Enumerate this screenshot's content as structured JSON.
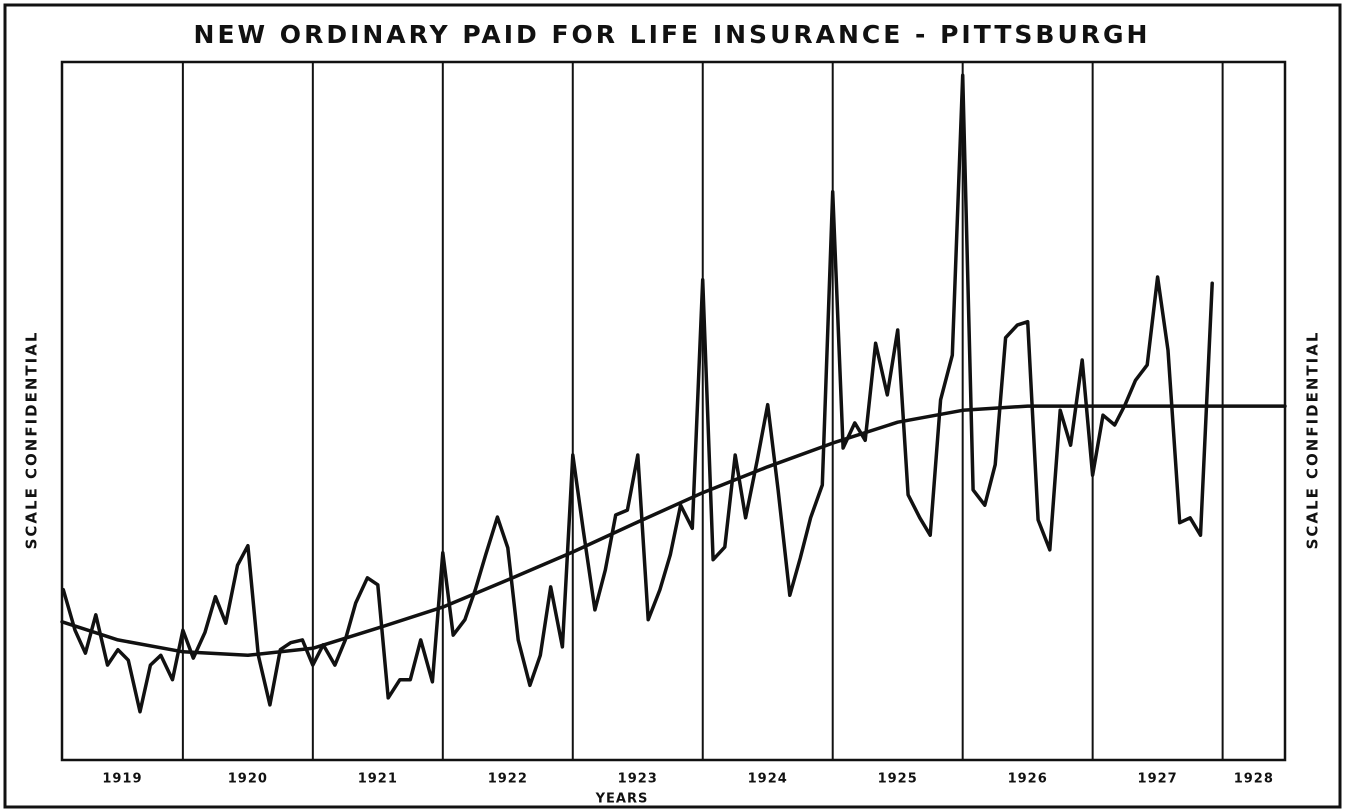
{
  "chart_data": {
    "type": "line",
    "title": "NEW ORDINARY PAID FOR LIFE INSURANCE - PITTSBURGH",
    "x_label": "YEARS",
    "y_label": "SCALE CONFIDENTIAL",
    "y2_label": "SCALE CONFIDENTIAL",
    "xlim": [
      1919.07,
      1928.48
    ],
    "xticks": [
      1919,
      1920,
      1921,
      1922,
      1923,
      1924,
      1925,
      1926,
      1927,
      1928
    ],
    "ylim": [
      0,
      100
    ],
    "grid": true,
    "series": [
      {
        "color": "#111111",
        "x": [
          1919.08,
          1919.17,
          1919.25,
          1919.33,
          1919.42,
          1919.5,
          1919.58,
          1919.67,
          1919.75,
          1919.83,
          1919.92,
          1920.0,
          1920.08,
          1920.17,
          1920.25,
          1920.33,
          1920.42,
          1920.5,
          1920.58,
          1920.67,
          1920.75,
          1920.83,
          1920.92,
          1921.0,
          1921.08,
          1921.17,
          1921.25,
          1921.33,
          1921.42,
          1921.5,
          1921.58,
          1921.67,
          1921.75,
          1921.83,
          1921.92,
          1922.0,
          1922.08,
          1922.17,
          1922.25,
          1922.33,
          1922.42,
          1922.5,
          1922.58,
          1922.67,
          1922.75,
          1922.83,
          1922.92,
          1923.0,
          1923.08,
          1923.17,
          1923.25,
          1923.33,
          1923.42,
          1923.5,
          1923.58,
          1923.67,
          1923.75,
          1923.83,
          1923.92,
          1924.0,
          1924.08,
          1924.17,
          1924.25,
          1924.33,
          1924.42,
          1924.5,
          1924.58,
          1924.67,
          1924.75,
          1924.83,
          1924.92,
          1925.0,
          1925.08,
          1925.17,
          1925.25,
          1925.33,
          1925.42,
          1925.5,
          1925.58,
          1925.67,
          1925.75,
          1925.83,
          1925.92,
          1926.0,
          1926.08,
          1926.17,
          1926.25,
          1926.33,
          1926.42,
          1926.5,
          1926.58,
          1926.67,
          1926.75,
          1926.83,
          1926.92,
          1927.0,
          1927.08,
          1927.17,
          1927.25,
          1927.33,
          1927.42,
          1927.5,
          1927.58,
          1927.67,
          1927.75,
          1927.83,
          1927.92
        ],
        "values": [
          24.4,
          18.6,
          15.3,
          20.8,
          13.6,
          15.8,
          14.3,
          6.9,
          13.6,
          15.0,
          11.5,
          18.6,
          14.6,
          18.3,
          23.4,
          19.6,
          27.9,
          30.7,
          15.0,
          7.9,
          15.8,
          16.8,
          17.2,
          13.6,
          16.5,
          13.6,
          17.2,
          22.5,
          26.1,
          25.1,
          8.9,
          11.5,
          11.5,
          17.2,
          11.2,
          29.7,
          17.9,
          20.1,
          24.4,
          29.4,
          34.8,
          30.4,
          17.2,
          10.7,
          15.0,
          24.8,
          16.2,
          43.7,
          33.0,
          21.5,
          27.2,
          35.1,
          35.8,
          43.7,
          20.1,
          24.4,
          29.4,
          36.5,
          33.2,
          68.8,
          28.7,
          30.5,
          43.7,
          34.7,
          43.0,
          50.9,
          38.7,
          23.6,
          28.9,
          34.7,
          39.4,
          81.4,
          44.7,
          48.3,
          45.8,
          59.7,
          52.3,
          61.6,
          38.0,
          34.7,
          32.2,
          51.6,
          58.0,
          98.1,
          38.7,
          36.5,
          42.3,
          60.5,
          62.3,
          62.8,
          34.4,
          30.1,
          50.1,
          45.1,
          57.3,
          40.8,
          49.4,
          48.0,
          50.9,
          54.4,
          56.6,
          69.2,
          58.7,
          34.0,
          34.7,
          32.2,
          68.3
        ]
      },
      {
        "color": "#111111",
        "x": [
          1919.07,
          1919.5,
          1920.0,
          1920.5,
          1921.0,
          1921.5,
          1922.0,
          1922.5,
          1923.0,
          1923.5,
          1924.0,
          1924.5,
          1925.0,
          1925.5,
          1926.0,
          1926.5,
          1927.0,
          1927.5,
          1928.48
        ],
        "values": [
          19.8,
          17.2,
          15.5,
          15.0,
          16.0,
          18.9,
          21.9,
          25.8,
          29.8,
          34.1,
          38.3,
          42.0,
          45.4,
          48.4,
          50.1,
          50.7,
          50.7,
          50.7,
          50.7
        ]
      }
    ]
  }
}
